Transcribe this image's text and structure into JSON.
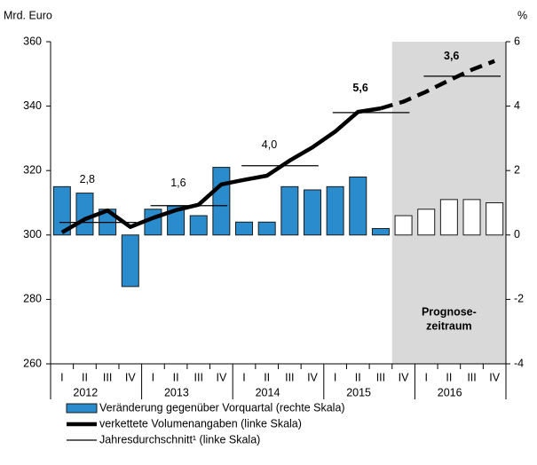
{
  "chart_data": {
    "type": "bar_line",
    "y_label": "Mrd. Euro",
    "y2_label": "%",
    "categories": [
      "I",
      "II",
      "III",
      "IV",
      "I",
      "II",
      "III",
      "IV",
      "I",
      "II",
      "III",
      "IV",
      "I",
      "II",
      "III",
      "IV",
      "I",
      "II",
      "III",
      "IV"
    ],
    "groups": [
      "2012",
      "2013",
      "2014",
      "2015",
      "2016"
    ],
    "ylim": [
      260,
      360
    ],
    "yticks": [
      260,
      280,
      300,
      320,
      340,
      360
    ],
    "y2lim": [
      -4,
      6
    ],
    "y2ticks": [
      -4,
      -2,
      0,
      2,
      4,
      6
    ],
    "forecast": {
      "label_lines": [
        "Prognose-",
        "zeitraum"
      ],
      "from_index": 15,
      "color": "#d9d9d9",
      "bar_color": "#ffffff"
    },
    "series": [
      {
        "name": "Veränderung gegenüber Vorquartal (rechte Skala)",
        "type": "bar",
        "axis": "y2",
        "color": "#2a8ccc",
        "values": [
          1.5,
          1.3,
          0.8,
          -1.6,
          0.8,
          0.9,
          0.6,
          2.1,
          0.4,
          0.4,
          1.5,
          1.4,
          1.5,
          1.8,
          0.2,
          0.6,
          0.8,
          1.1,
          1.1,
          1.0
        ]
      },
      {
        "name": "verkettete Volumenangaben (linke Skala)",
        "type": "line",
        "color": "#000000",
        "values": [
          300.8,
          304.9,
          307.6,
          302.5,
          305.3,
          307.7,
          309.4,
          315.7,
          317.1,
          318.4,
          323.1,
          327.2,
          332.1,
          338.2,
          339.3,
          341.4,
          344.5,
          348.0,
          351.3,
          354.0
        ]
      }
    ],
    "annual_average": {
      "name": "Jahresdurchschnitt¹ (linke Skala)",
      "color": "#000000",
      "values": [
        303.9,
        309.1,
        321.5,
        338.0,
        349.3
      ]
    },
    "annual_growth": {
      "values": [
        2.8,
        1.6,
        4.0,
        5.6,
        3.6
      ],
      "value_labels": [
        "2,8",
        "1,6",
        "4,0",
        "5,6",
        "3,6"
      ]
    }
  }
}
